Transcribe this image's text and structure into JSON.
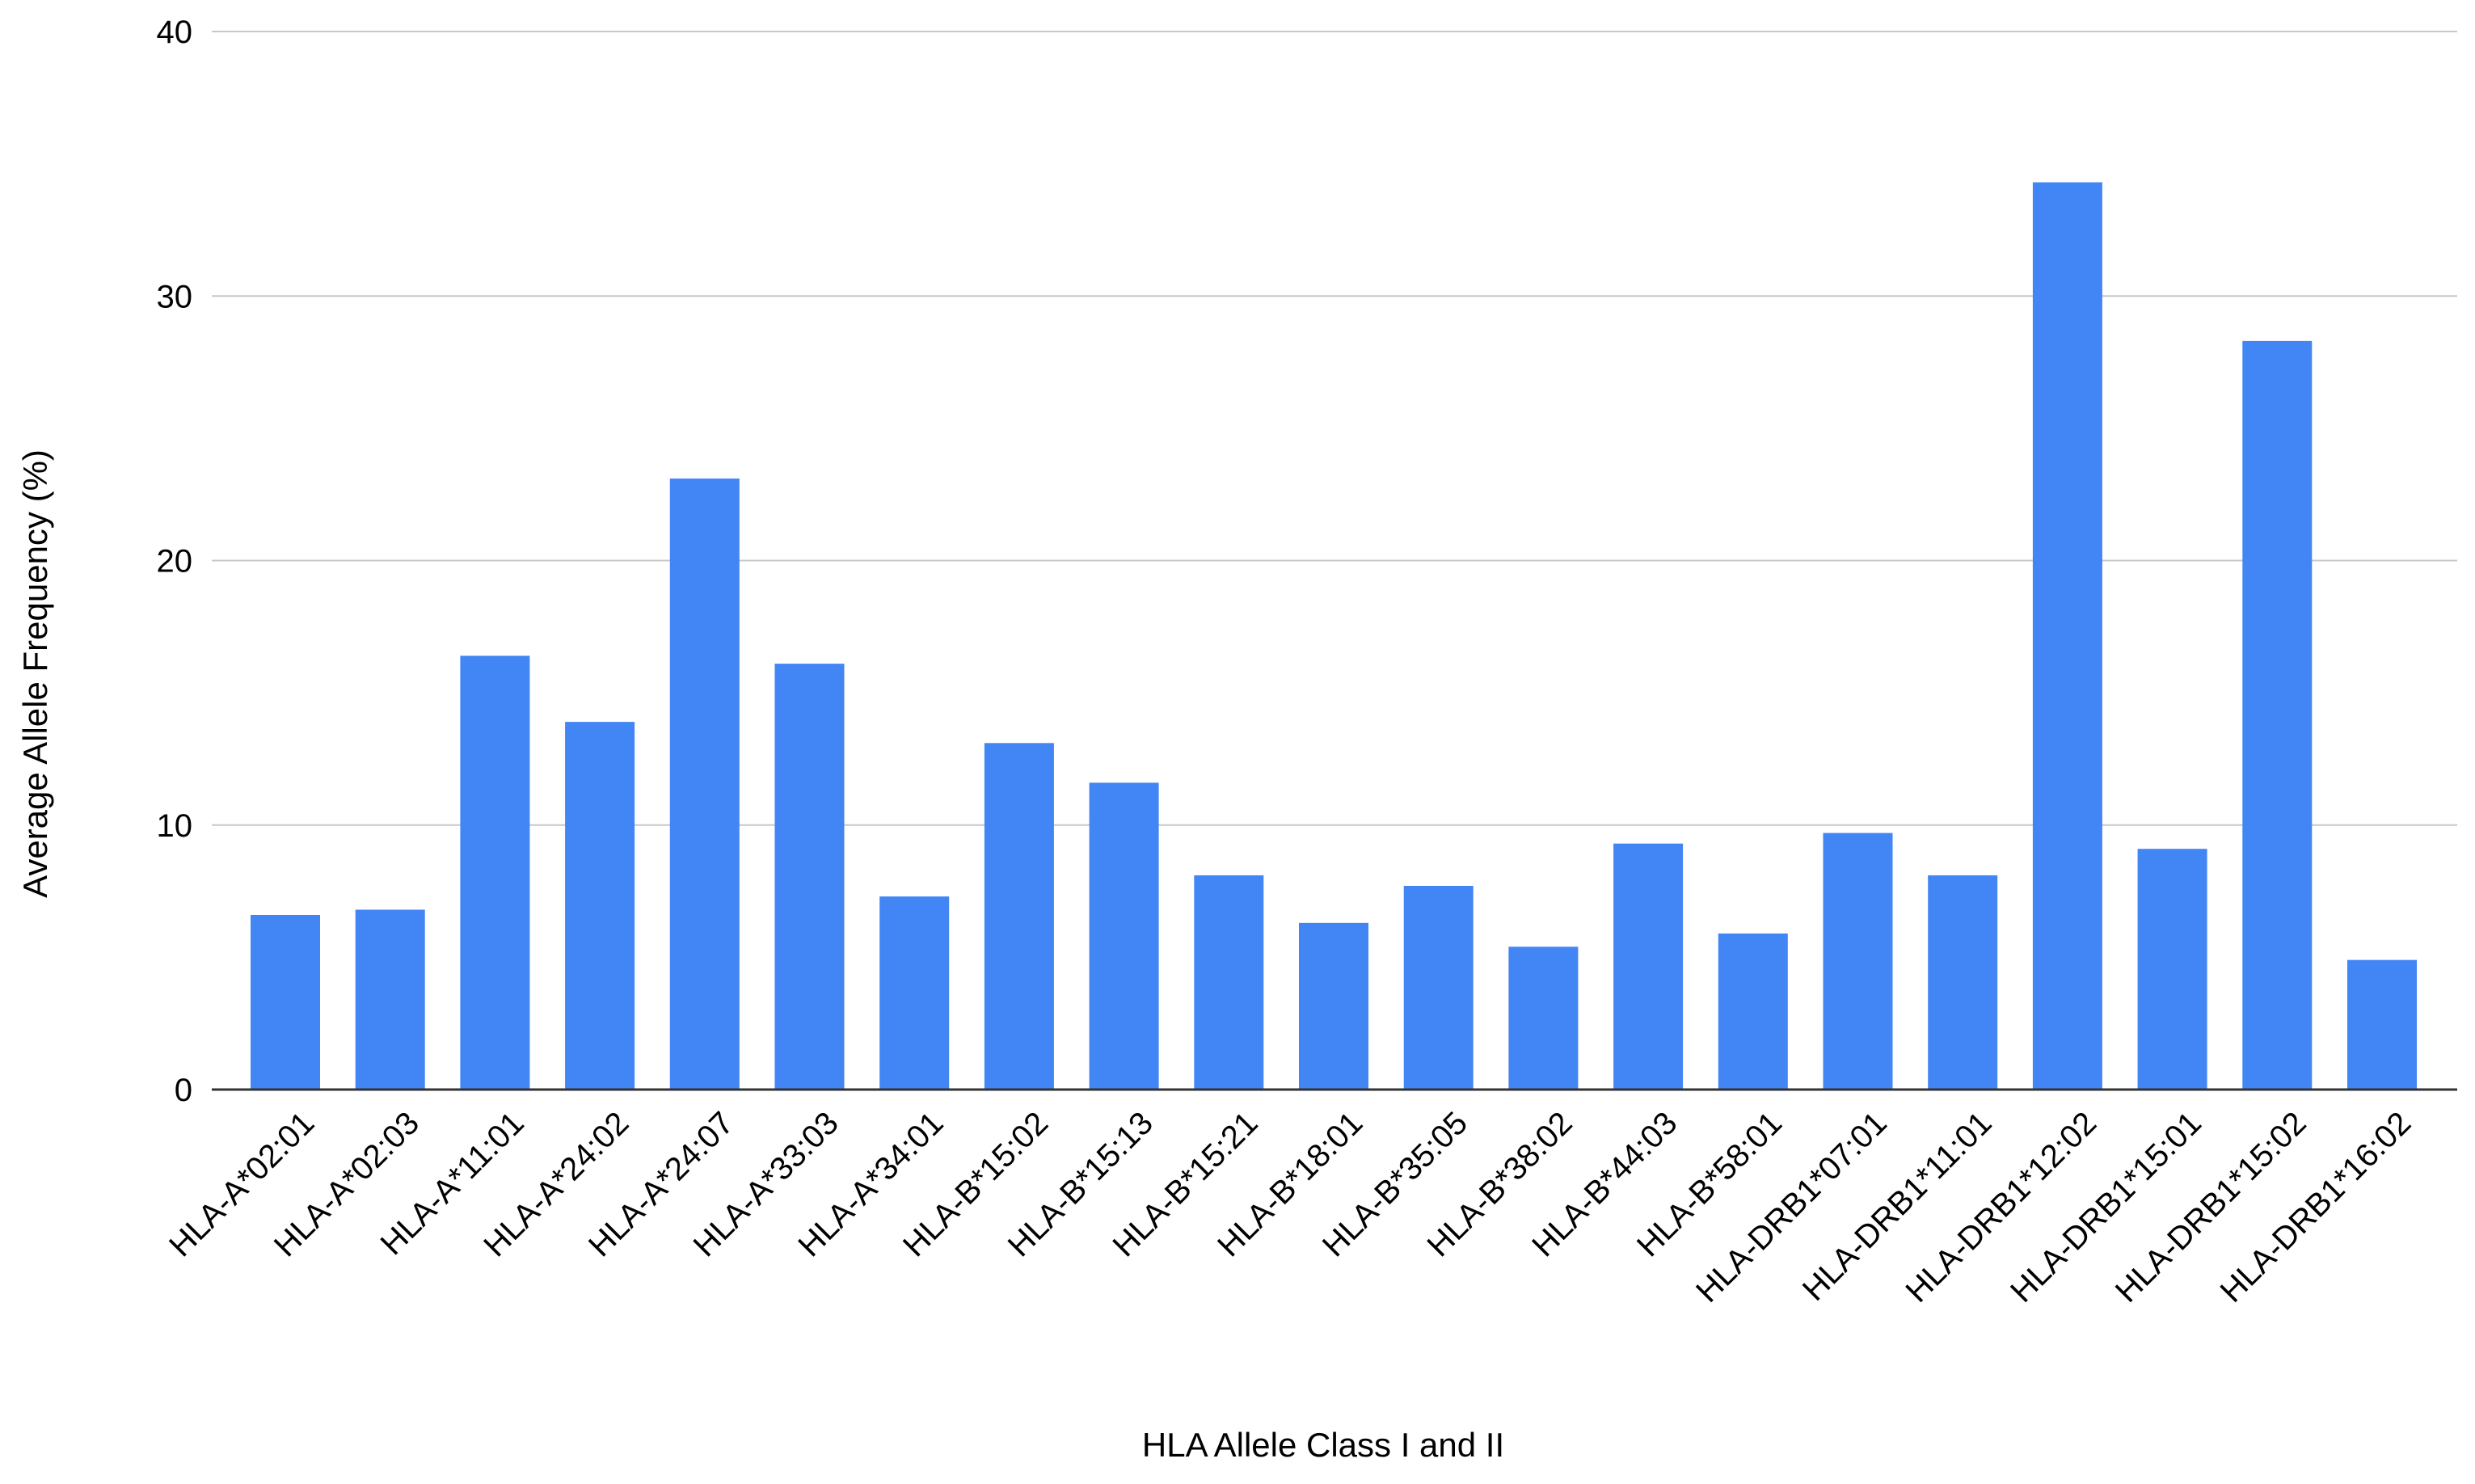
{
  "chart_data": {
    "type": "bar",
    "title": "",
    "xlabel": "HLA Allele Class I and II",
    "ylabel": "Average Allele Frequency (%)",
    "ylim": [
      0,
      40
    ],
    "yticks": [
      0,
      10,
      20,
      30,
      40
    ],
    "grid": true,
    "legend": "none",
    "bar_color": "#4285f4",
    "categories": [
      "HLA-A*02:01",
      "HLA-A*02:03",
      "HLA-A*11:01",
      "HLA-A*24:02",
      "HLA-A*24:07",
      "HLA-A*33:03",
      "HLA-A*34:01",
      "HLA-B*15:02",
      "HLA-B*15:13",
      "HLA-B*15:21",
      "HLA-B*18:01",
      "HLA-B*35:05",
      "HLA-B*38:02",
      "HLA-B*44:03",
      "HLA-B*58:01",
      "HLA-DRB1*07:01",
      "HLA-DRB1*11:01",
      "HLA-DRB1*12:02",
      "HLA-DRB1*15:01",
      "HLA-DRB1*15:02",
      "HLA-DRB1*16:02"
    ],
    "values": [
      6.6,
      6.8,
      16.4,
      13.9,
      23.1,
      16.1,
      7.3,
      13.1,
      11.6,
      8.1,
      6.3,
      7.7,
      5.4,
      9.3,
      5.9,
      9.7,
      8.1,
      34.3,
      9.1,
      28.3,
      4.9
    ]
  }
}
